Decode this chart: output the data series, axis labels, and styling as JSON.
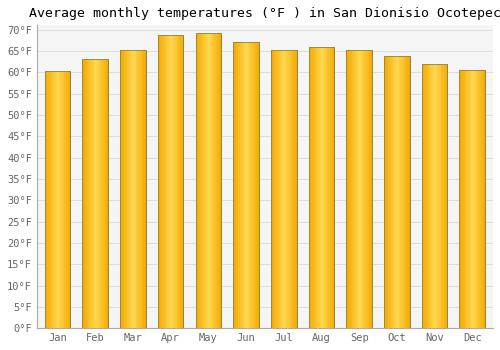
{
  "title": "Average monthly temperatures (°F ) in San Dionisio Ocotepec",
  "months": [
    "Jan",
    "Feb",
    "Mar",
    "Apr",
    "May",
    "Jun",
    "Jul",
    "Aug",
    "Sep",
    "Oct",
    "Nov",
    "Dec"
  ],
  "values": [
    60.3,
    63.0,
    65.3,
    68.7,
    69.1,
    67.1,
    65.3,
    65.8,
    65.1,
    63.7,
    62.0,
    60.6
  ],
  "bar_color_center": "#FFD040",
  "bar_color_edge": "#F5A800",
  "bar_border_color": "#888844",
  "background_color": "#FFFFFF",
  "plot_bg_color": "#F5F5F5",
  "grid_color": "#DDDDDD",
  "ylim": [
    0,
    71
  ],
  "yticks": [
    0,
    5,
    10,
    15,
    20,
    25,
    30,
    35,
    40,
    45,
    50,
    55,
    60,
    65,
    70
  ],
  "title_fontsize": 9.5,
  "tick_fontsize": 7.5,
  "font_family": "monospace"
}
